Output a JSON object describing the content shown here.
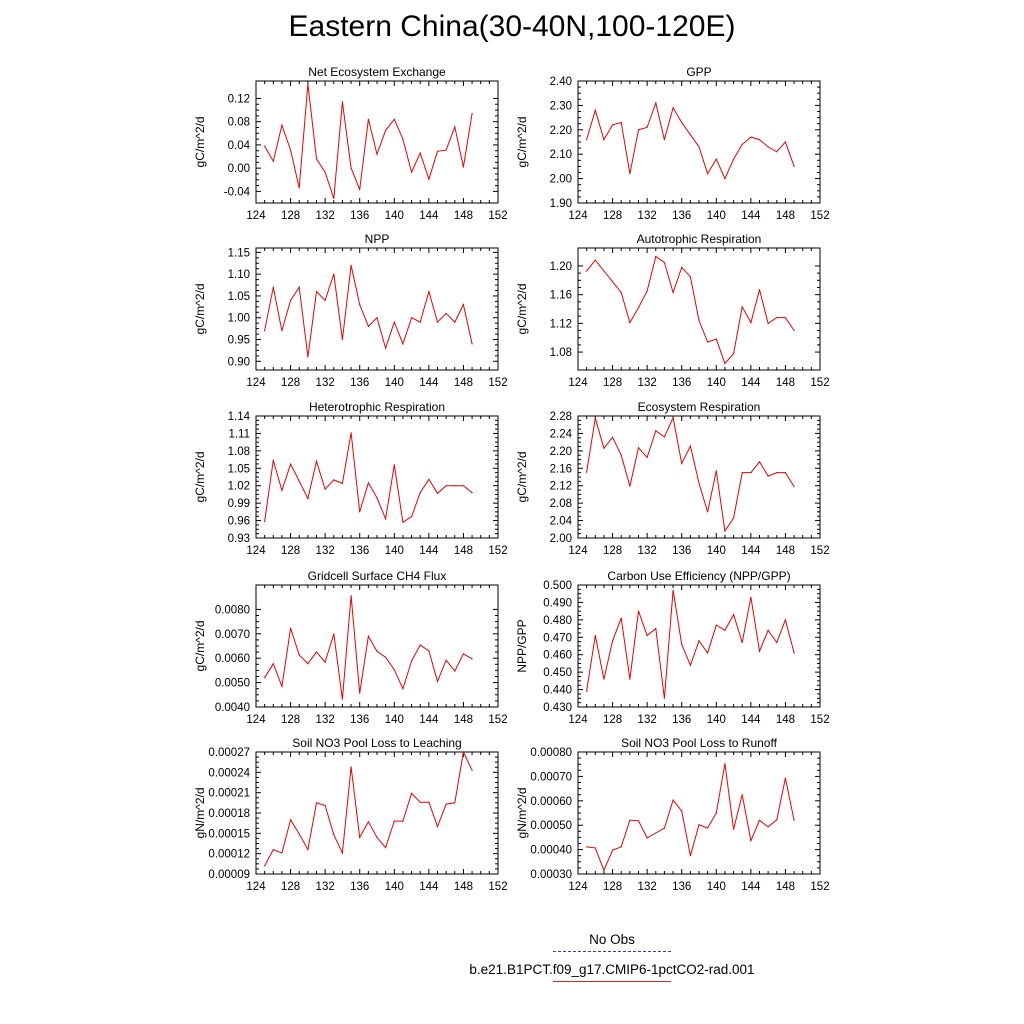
{
  "figure_title": "Eastern China(30-40N,100-120E)",
  "legend": [
    {
      "label": "No Obs",
      "style": "dashed",
      "color": "#3333dd"
    },
    {
      "label": "b.e21.B1PCT.f09_g17.CMIP6-1pctCO2-rad.001",
      "style": "solid",
      "color": "#dd2222"
    }
  ],
  "series_color": "#ee0000",
  "chart_data": [
    {
      "type": "line",
      "title": "Net Ecosystem Exchange",
      "ylabel": "gC/m^2/d",
      "xlim": [
        124,
        152
      ],
      "ylim": [
        -0.06,
        0.15
      ],
      "xticks": [
        "124",
        "128",
        "132",
        "136",
        "140",
        "144",
        "148",
        "152"
      ],
      "yticks": [
        {
          "v": -0.04,
          "label": "-0.04"
        },
        {
          "v": 0.0,
          "label": "0.00"
        },
        {
          "v": 0.04,
          "label": "0.04"
        },
        {
          "v": 0.08,
          "label": "0.08"
        },
        {
          "v": 0.12,
          "label": "0.12"
        }
      ],
      "x": [
        125,
        126,
        127,
        128,
        129,
        130,
        131,
        132,
        133,
        134,
        135,
        136,
        137,
        138,
        139,
        140,
        141,
        142,
        143,
        144,
        145,
        146,
        147,
        148,
        149
      ],
      "y": [
        0.038,
        0.012,
        0.074,
        0.031,
        -0.034,
        0.145,
        0.016,
        -0.007,
        -0.052,
        0.114,
        0.0,
        -0.037,
        0.084,
        0.024,
        0.065,
        0.084,
        0.05,
        -0.007,
        0.026,
        -0.019,
        0.029,
        0.031,
        0.071,
        0.002,
        0.094
      ]
    },
    {
      "type": "line",
      "title": "GPP",
      "ylabel": "gC/m^2/d",
      "xlim": [
        124,
        152
      ],
      "ylim": [
        1.9,
        2.4
      ],
      "xticks": [
        "124",
        "128",
        "132",
        "136",
        "140",
        "144",
        "148",
        "152"
      ],
      "yticks": [
        {
          "v": 1.9,
          "label": "1.90"
        },
        {
          "v": 2.0,
          "label": "2.00"
        },
        {
          "v": 2.1,
          "label": "2.10"
        },
        {
          "v": 2.2,
          "label": "2.20"
        },
        {
          "v": 2.3,
          "label": "2.30"
        },
        {
          "v": 2.4,
          "label": "2.40"
        }
      ],
      "x": [
        125,
        126,
        127,
        128,
        129,
        130,
        131,
        132,
        133,
        134,
        135,
        136,
        137,
        138,
        139,
        140,
        141,
        142,
        143,
        144,
        145,
        146,
        147,
        148,
        149
      ],
      "y": [
        2.16,
        2.28,
        2.16,
        2.22,
        2.23,
        2.02,
        2.2,
        2.21,
        2.31,
        2.16,
        2.29,
        2.23,
        2.18,
        2.13,
        2.02,
        2.08,
        2.0,
        2.08,
        2.14,
        2.17,
        2.16,
        2.13,
        2.11,
        2.15,
        2.05
      ]
    },
    {
      "type": "line",
      "title": "NPP",
      "ylabel": "gC/m^2/d",
      "xlim": [
        124,
        152
      ],
      "ylim": [
        0.88,
        1.16
      ],
      "xticks": [
        "124",
        "128",
        "132",
        "136",
        "140",
        "144",
        "148",
        "152"
      ],
      "yticks": [
        {
          "v": 0.9,
          "label": "0.90"
        },
        {
          "v": 0.95,
          "label": "0.95"
        },
        {
          "v": 1.0,
          "label": "1.00"
        },
        {
          "v": 1.05,
          "label": "1.05"
        },
        {
          "v": 1.1,
          "label": "1.10"
        },
        {
          "v": 1.15,
          "label": "1.15"
        }
      ],
      "x": [
        125,
        126,
        127,
        128,
        129,
        130,
        131,
        132,
        133,
        134,
        135,
        136,
        137,
        138,
        139,
        140,
        141,
        142,
        143,
        144,
        145,
        146,
        147,
        148,
        149
      ],
      "y": [
        0.97,
        1.07,
        0.97,
        1.04,
        1.07,
        0.91,
        1.06,
        1.04,
        1.1,
        0.95,
        1.12,
        1.03,
        0.98,
        1.0,
        0.93,
        0.99,
        0.94,
        1.0,
        0.99,
        1.06,
        0.99,
        1.01,
        0.99,
        1.03,
        0.94
      ]
    },
    {
      "type": "line",
      "title": "Autotrophic Respiration",
      "ylabel": "gC/m^2/d",
      "xlim": [
        124,
        152
      ],
      "ylim": [
        1.055,
        1.225
      ],
      "xticks": [
        "124",
        "128",
        "132",
        "136",
        "140",
        "144",
        "148",
        "152"
      ],
      "yticks": [
        {
          "v": 1.08,
          "label": "1.08"
        },
        {
          "v": 1.12,
          "label": "1.12"
        },
        {
          "v": 1.16,
          "label": "1.16"
        },
        {
          "v": 1.2,
          "label": "1.20"
        }
      ],
      "x": [
        125,
        126,
        127,
        128,
        129,
        130,
        131,
        132,
        133,
        134,
        135,
        136,
        137,
        138,
        139,
        140,
        141,
        142,
        143,
        144,
        145,
        146,
        147,
        148,
        149
      ],
      "y": [
        1.193,
        1.208,
        1.193,
        1.178,
        1.163,
        1.121,
        1.142,
        1.165,
        1.213,
        1.205,
        1.163,
        1.198,
        1.185,
        1.124,
        1.094,
        1.098,
        1.064,
        1.078,
        1.143,
        1.121,
        1.167,
        1.12,
        1.128,
        1.128,
        1.11
      ]
    },
    {
      "type": "line",
      "title": "Heterotrophic Respiration",
      "ylabel": "gC/m^2/d",
      "xlim": [
        124,
        152
      ],
      "ylim": [
        0.93,
        1.14
      ],
      "xticks": [
        "124",
        "128",
        "132",
        "136",
        "140",
        "144",
        "148",
        "152"
      ],
      "yticks": [
        {
          "v": 0.93,
          "label": "0.93"
        },
        {
          "v": 0.96,
          "label": "0.96"
        },
        {
          "v": 0.99,
          "label": "0.99"
        },
        {
          "v": 1.02,
          "label": "1.02"
        },
        {
          "v": 1.05,
          "label": "1.05"
        },
        {
          "v": 1.08,
          "label": "1.08"
        },
        {
          "v": 1.11,
          "label": "1.11"
        },
        {
          "v": 1.14,
          "label": "1.14"
        }
      ],
      "x": [
        125,
        126,
        127,
        128,
        129,
        130,
        131,
        132,
        133,
        134,
        135,
        136,
        137,
        138,
        139,
        140,
        141,
        142,
        143,
        144,
        145,
        146,
        147,
        148,
        149
      ],
      "y": [
        0.958,
        1.064,
        1.012,
        1.057,
        1.028,
        0.998,
        1.062,
        1.014,
        1.03,
        1.024,
        1.111,
        0.975,
        1.025,
        0.999,
        0.963,
        1.056,
        0.957,
        0.967,
        1.008,
        1.031,
        1.007,
        1.02,
        1.02,
        1.02,
        1.008
      ]
    },
    {
      "type": "line",
      "title": "Ecosystem Respiration",
      "ylabel": "gC/m^2/d",
      "xlim": [
        124,
        152
      ],
      "ylim": [
        2.0,
        2.28
      ],
      "xticks": [
        "124",
        "128",
        "132",
        "136",
        "140",
        "144",
        "148",
        "152"
      ],
      "yticks": [
        {
          "v": 2.0,
          "label": "2.00"
        },
        {
          "v": 2.04,
          "label": "2.04"
        },
        {
          "v": 2.08,
          "label": "2.08"
        },
        {
          "v": 2.12,
          "label": "2.12"
        },
        {
          "v": 2.16,
          "label": "2.16"
        },
        {
          "v": 2.2,
          "label": "2.20"
        },
        {
          "v": 2.24,
          "label": "2.24"
        },
        {
          "v": 2.28,
          "label": "2.28"
        }
      ],
      "x": [
        125,
        126,
        127,
        128,
        129,
        130,
        131,
        132,
        133,
        134,
        135,
        136,
        137,
        138,
        139,
        140,
        141,
        142,
        143,
        144,
        145,
        146,
        147,
        148,
        149
      ],
      "y": [
        2.151,
        2.275,
        2.206,
        2.231,
        2.19,
        2.119,
        2.207,
        2.185,
        2.246,
        2.232,
        2.276,
        2.171,
        2.211,
        2.126,
        2.06,
        2.154,
        2.016,
        2.046,
        2.15,
        2.15,
        2.175,
        2.142,
        2.15,
        2.15,
        2.118
      ]
    },
    {
      "type": "line",
      "title": "Gridcell Surface CH4 Flux",
      "ylabel": "gC/m^2/d",
      "xlim": [
        124,
        152
      ],
      "ylim": [
        0.004,
        0.009
      ],
      "xticks": [
        "124",
        "128",
        "132",
        "136",
        "140",
        "144",
        "148",
        "152"
      ],
      "yticks": [
        {
          "v": 0.004,
          "label": "0.0040"
        },
        {
          "v": 0.005,
          "label": "0.0050"
        },
        {
          "v": 0.006,
          "label": "0.0060"
        },
        {
          "v": 0.007,
          "label": "0.0070"
        },
        {
          "v": 0.008,
          "label": "0.0080"
        }
      ],
      "x": [
        125,
        126,
        127,
        128,
        129,
        130,
        131,
        132,
        133,
        134,
        135,
        136,
        137,
        138,
        139,
        140,
        141,
        142,
        143,
        144,
        145,
        146,
        147,
        148,
        149
      ],
      "y": [
        0.0052,
        0.00577,
        0.00485,
        0.00723,
        0.00613,
        0.00578,
        0.00625,
        0.00584,
        0.00699,
        0.00432,
        0.00856,
        0.00457,
        0.0069,
        0.00628,
        0.00604,
        0.00553,
        0.00475,
        0.00589,
        0.00654,
        0.0063,
        0.00505,
        0.00592,
        0.00547,
        0.00618,
        0.00597
      ]
    },
    {
      "type": "line",
      "title": "Carbon Use Efficiency (NPP/GPP)",
      "ylabel": "NPP/GPP",
      "xlim": [
        124,
        152
      ],
      "ylim": [
        0.43,
        0.5
      ],
      "xticks": [
        "124",
        "128",
        "132",
        "136",
        "140",
        "144",
        "148",
        "152"
      ],
      "yticks": [
        {
          "v": 0.43,
          "label": "0.430"
        },
        {
          "v": 0.44,
          "label": "0.440"
        },
        {
          "v": 0.45,
          "label": "0.450"
        },
        {
          "v": 0.46,
          "label": "0.460"
        },
        {
          "v": 0.47,
          "label": "0.470"
        },
        {
          "v": 0.48,
          "label": "0.480"
        },
        {
          "v": 0.49,
          "label": "0.490"
        },
        {
          "v": 0.5,
          "label": "0.500"
        }
      ],
      "x": [
        125,
        126,
        127,
        128,
        129,
        130,
        131,
        132,
        133,
        134,
        135,
        136,
        137,
        138,
        139,
        140,
        141,
        142,
        143,
        144,
        145,
        146,
        147,
        148,
        149
      ],
      "y": [
        0.439,
        0.471,
        0.446,
        0.468,
        0.481,
        0.446,
        0.485,
        0.471,
        0.475,
        0.435,
        0.497,
        0.466,
        0.454,
        0.468,
        0.461,
        0.477,
        0.474,
        0.483,
        0.467,
        0.493,
        0.462,
        0.474,
        0.467,
        0.48,
        0.461
      ]
    },
    {
      "type": "line",
      "title": "Soil NO3 Pool Loss to Leaching",
      "ylabel": "gN/m^2/d",
      "xlim": [
        124,
        152
      ],
      "ylim": [
        9e-05,
        0.00027
      ],
      "xticks": [
        "124",
        "128",
        "132",
        "136",
        "140",
        "144",
        "148",
        "152"
      ],
      "yticks": [
        {
          "v": 9e-05,
          "label": "0.00009"
        },
        {
          "v": 0.00012,
          "label": "0.00012"
        },
        {
          "v": 0.00015,
          "label": "0.00015"
        },
        {
          "v": 0.00018,
          "label": "0.00018"
        },
        {
          "v": 0.00021,
          "label": "0.00021"
        },
        {
          "v": 0.00024,
          "label": "0.00024"
        },
        {
          "v": 0.00027,
          "label": "0.00027"
        }
      ],
      "x": [
        125,
        126,
        127,
        128,
        129,
        130,
        131,
        132,
        133,
        134,
        135,
        136,
        137,
        138,
        139,
        140,
        141,
        142,
        143,
        144,
        145,
        146,
        147,
        148,
        149
      ],
      "y": [
        0.000102,
        0.000126,
        0.000121,
        0.00017,
        0.000149,
        0.000126,
        0.000195,
        0.000191,
        0.000148,
        0.000121,
        0.000248,
        0.000144,
        0.000167,
        0.000144,
        0.000129,
        0.000168,
        0.000168,
        0.000209,
        0.000196,
        0.000196,
        0.00016,
        0.000193,
        0.000195,
        0.00027,
        0.000243
      ]
    },
    {
      "type": "line",
      "title": "Soil NO3 Pool Loss to Runoff",
      "ylabel": "gN/m^2/d",
      "xlim": [
        124,
        152
      ],
      "ylim": [
        0.0003,
        0.0008
      ],
      "xticks": [
        "124",
        "128",
        "132",
        "136",
        "140",
        "144",
        "148",
        "152"
      ],
      "yticks": [
        {
          "v": 0.0003,
          "label": "0.00030"
        },
        {
          "v": 0.0004,
          "label": "0.00040"
        },
        {
          "v": 0.0005,
          "label": "0.00050"
        },
        {
          "v": 0.0006,
          "label": "0.00060"
        },
        {
          "v": 0.0007,
          "label": "0.00070"
        },
        {
          "v": 0.0008,
          "label": "0.00080"
        }
      ],
      "x": [
        125,
        126,
        127,
        128,
        129,
        130,
        131,
        132,
        133,
        134,
        135,
        136,
        137,
        138,
        139,
        140,
        141,
        142,
        143,
        144,
        145,
        146,
        147,
        148,
        149
      ],
      "y": [
        0.000411,
        0.000407,
        0.000315,
        0.000398,
        0.000411,
        0.000521,
        0.000518,
        0.000448,
        0.000468,
        0.000488,
        0.000603,
        0.000558,
        0.000375,
        0.000502,
        0.000488,
        0.00055,
        0.000752,
        0.000483,
        0.000625,
        0.000437,
        0.00052,
        0.000493,
        0.000522,
        0.000693,
        0.00052
      ]
    }
  ]
}
